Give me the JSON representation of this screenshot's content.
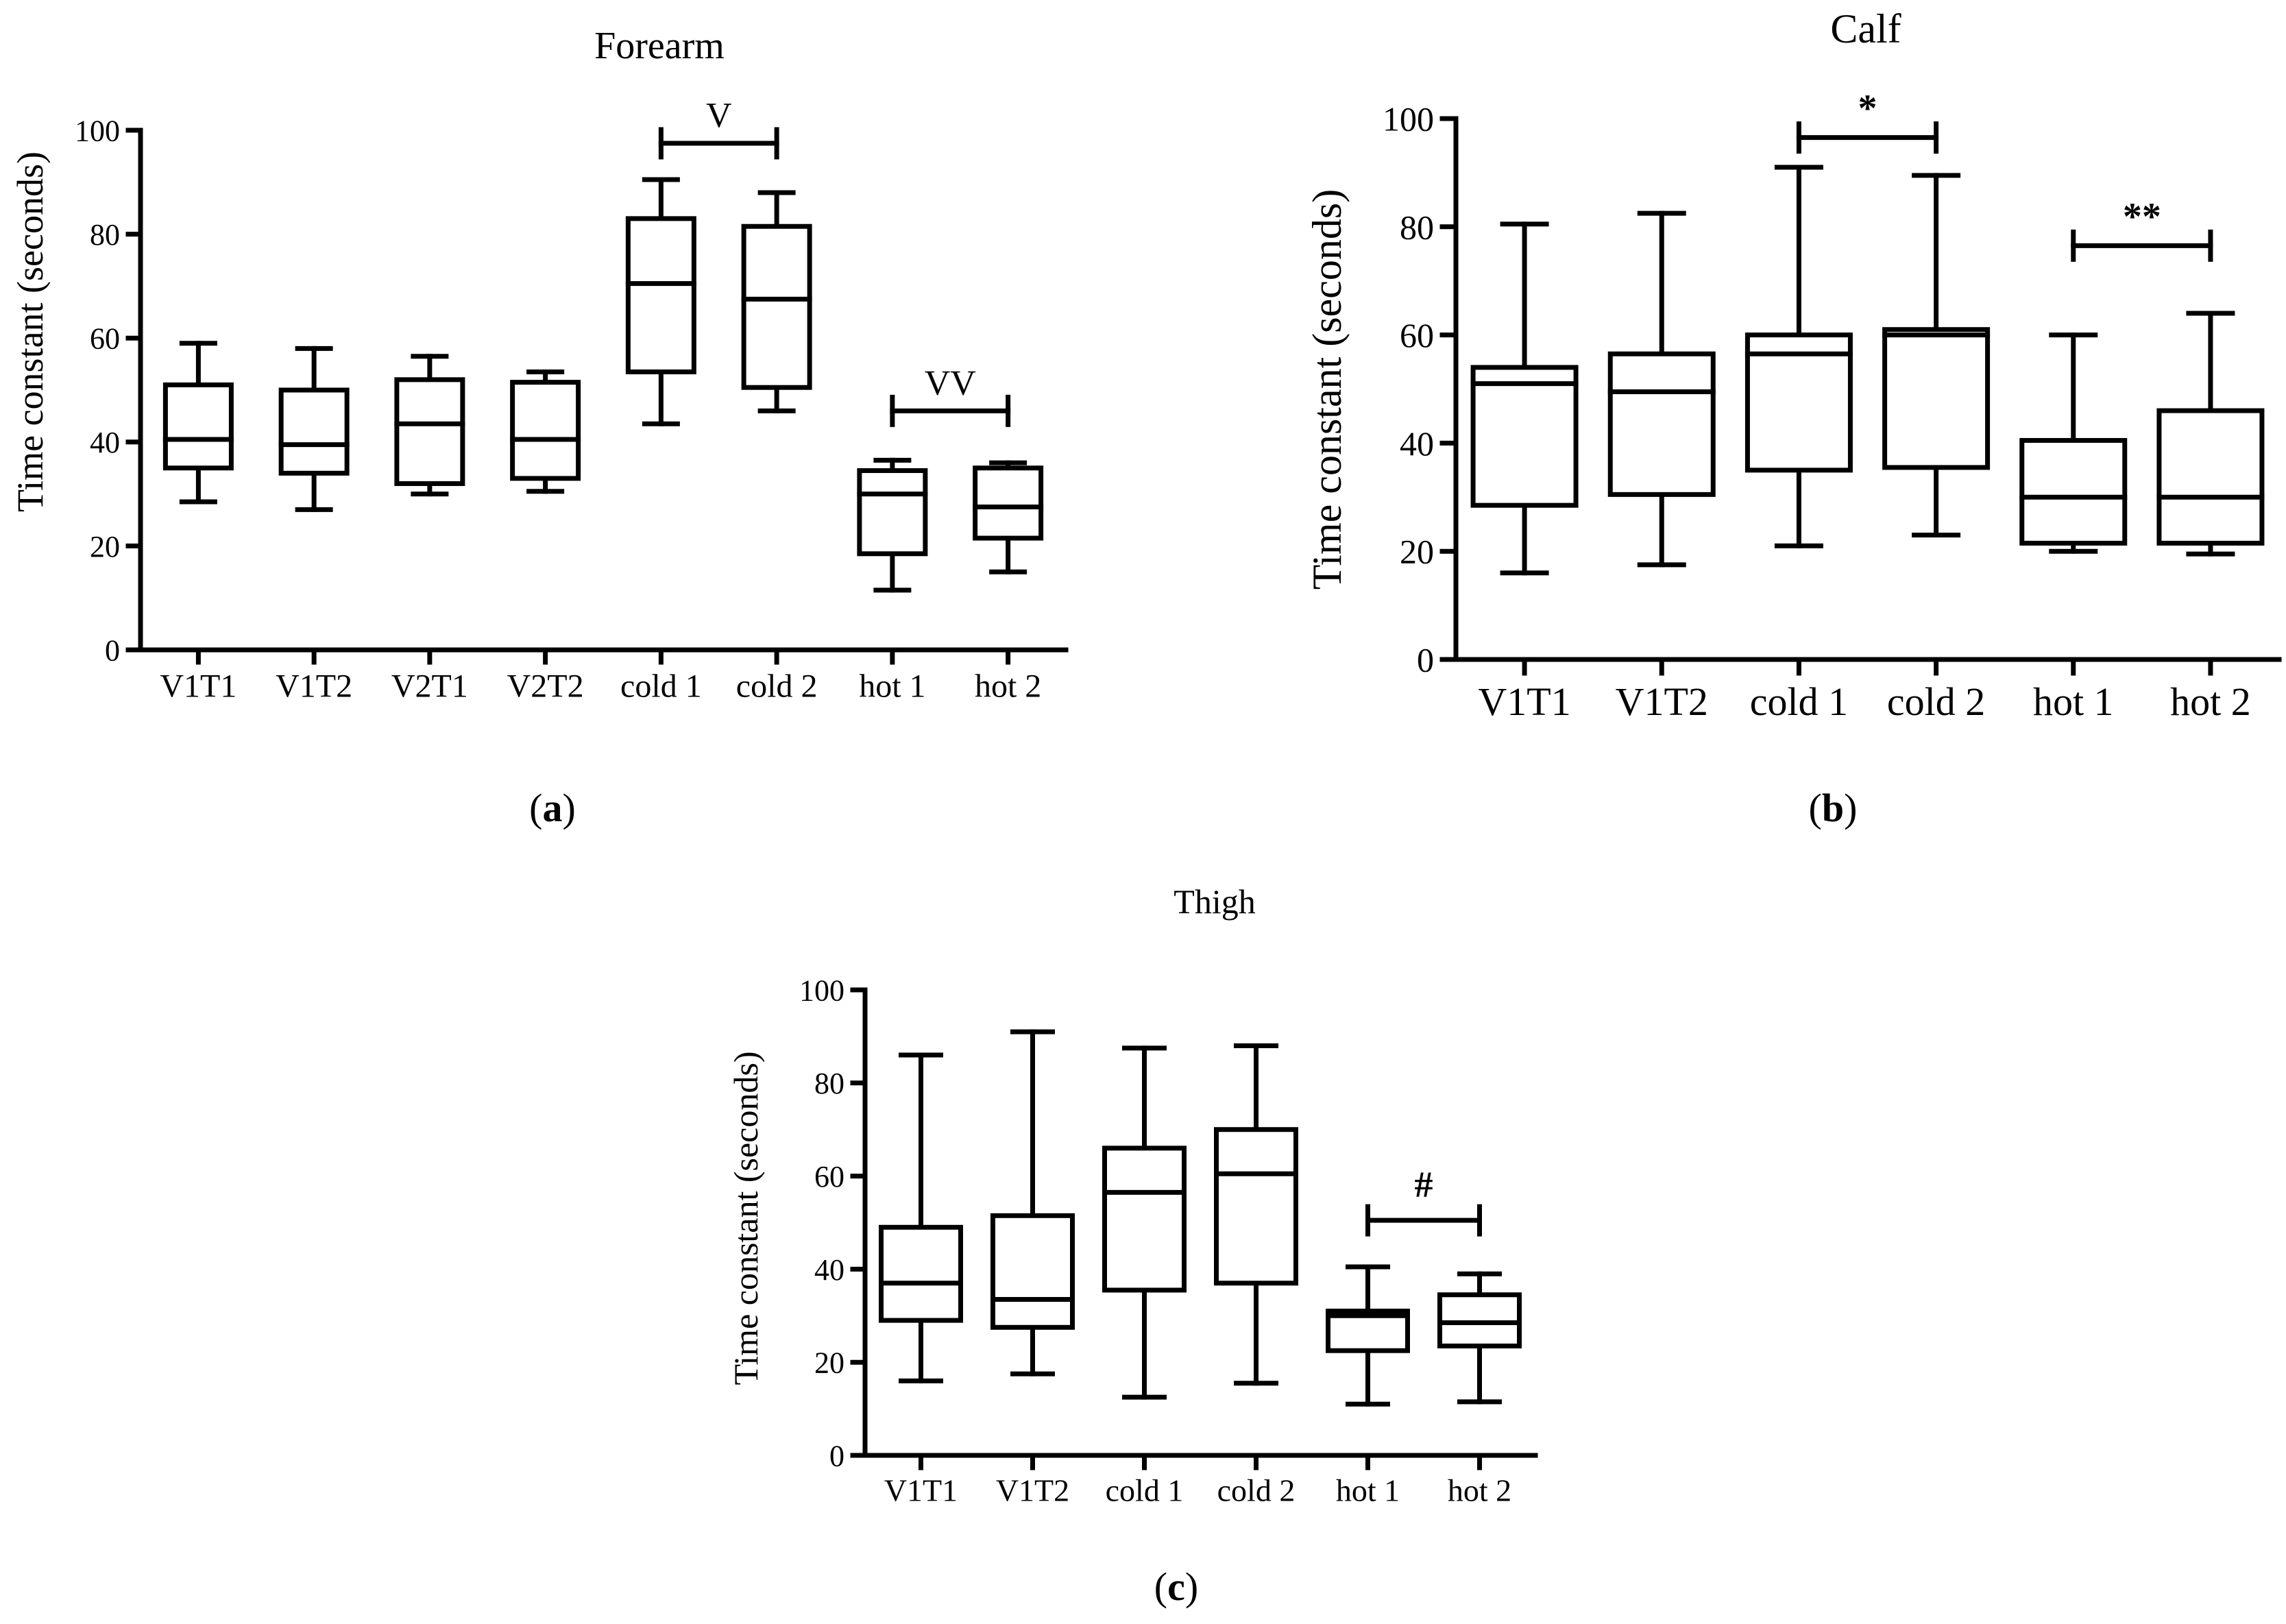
{
  "chart_data": [
    {
      "panel_label": "a",
      "type": "box",
      "title": "Forearm",
      "xlabel": "",
      "ylabel": "Time constant (seconds)",
      "ylim": [
        0,
        100
      ],
      "yticks": [
        0,
        20,
        40,
        60,
        80,
        100
      ],
      "categories": [
        "V1T1",
        "V1T2",
        "V2T1",
        "V2T2",
        "cold 1",
        "cold 2",
        "hot 1",
        "hot 2"
      ],
      "boxes": [
        {
          "min": 28.5,
          "q1": 35,
          "median": 40.5,
          "q3": 51,
          "max": 59
        },
        {
          "min": 27,
          "q1": 34,
          "median": 39.5,
          "q3": 50,
          "max": 58
        },
        {
          "min": 30,
          "q1": 32,
          "median": 43.5,
          "q3": 52,
          "max": 56.5
        },
        {
          "min": 30.5,
          "q1": 33,
          "median": 40.5,
          "q3": 51.5,
          "max": 53.5
        },
        {
          "min": 43.5,
          "q1": 53.5,
          "median": 70.5,
          "q3": 83,
          "max": 90.5
        },
        {
          "min": 46,
          "q1": 50.5,
          "median": 67.5,
          "q3": 81.5,
          "max": 88
        },
        {
          "min": 11.5,
          "q1": 18.5,
          "median": 30,
          "q3": 34.5,
          "max": 36.5
        },
        {
          "min": 15,
          "q1": 21.5,
          "median": 27.5,
          "q3": 35,
          "max": 36
        }
      ],
      "annotations": [
        {
          "label": "V",
          "from": 4,
          "to": 5,
          "y": 97.5
        },
        {
          "label": "VV",
          "from": 6,
          "to": 7,
          "y": 46
        }
      ]
    },
    {
      "panel_label": "b",
      "type": "box",
      "title": "Calf",
      "xlabel": "",
      "ylabel": "Time constant (seconds)",
      "ylim": [
        0,
        100
      ],
      "yticks": [
        0,
        20,
        40,
        60,
        80,
        100
      ],
      "categories": [
        "V1T1",
        "V1T2",
        "cold 1",
        "cold 2",
        "hot 1",
        "hot 2"
      ],
      "boxes": [
        {
          "min": 16,
          "q1": 28.5,
          "median": 51,
          "q3": 54,
          "max": 80.5
        },
        {
          "min": 17.5,
          "q1": 30.5,
          "median": 49.5,
          "q3": 56.5,
          "max": 82.5
        },
        {
          "min": 21,
          "q1": 35,
          "median": 56.5,
          "q3": 60,
          "max": 91
        },
        {
          "min": 23,
          "q1": 35.5,
          "median": 60,
          "q3": 61,
          "max": 89.5
        },
        {
          "min": 20,
          "q1": 21.5,
          "median": 30,
          "q3": 40.5,
          "max": 60
        },
        {
          "min": 19.5,
          "q1": 21.5,
          "median": 30,
          "q3": 46,
          "max": 64
        }
      ],
      "annotations": [
        {
          "label": "*",
          "from": 2,
          "to": 3,
          "y": 96.5
        },
        {
          "label": "**",
          "from": 4,
          "to": 5,
          "y": 76.5
        }
      ]
    },
    {
      "panel_label": "c",
      "type": "box",
      "title": "Thigh",
      "xlabel": "",
      "ylabel": "Time constant (seconds)",
      "ylim": [
        0,
        100
      ],
      "yticks": [
        0,
        20,
        40,
        60,
        80,
        100
      ],
      "categories": [
        "V1T1",
        "V1T2",
        "cold 1",
        "cold 2",
        "hot 1",
        "hot 2"
      ],
      "boxes": [
        {
          "min": 16,
          "q1": 29,
          "median": 37,
          "q3": 49,
          "max": 86
        },
        {
          "min": 17.5,
          "q1": 27.5,
          "median": 33.5,
          "q3": 51.5,
          "max": 91
        },
        {
          "min": 12.5,
          "q1": 35.5,
          "median": 56.5,
          "q3": 66,
          "max": 87.5
        },
        {
          "min": 15.5,
          "q1": 37,
          "median": 60.5,
          "q3": 70,
          "max": 88
        },
        {
          "min": 11,
          "q1": 22.5,
          "median": 30,
          "q3": 31,
          "max": 40.5
        },
        {
          "min": 11.5,
          "q1": 23.5,
          "median": 28.5,
          "q3": 34.5,
          "max": 39
        }
      ],
      "annotations": [
        {
          "label": "#",
          "from": 4,
          "to": 5,
          "y": 50.5
        }
      ]
    }
  ]
}
